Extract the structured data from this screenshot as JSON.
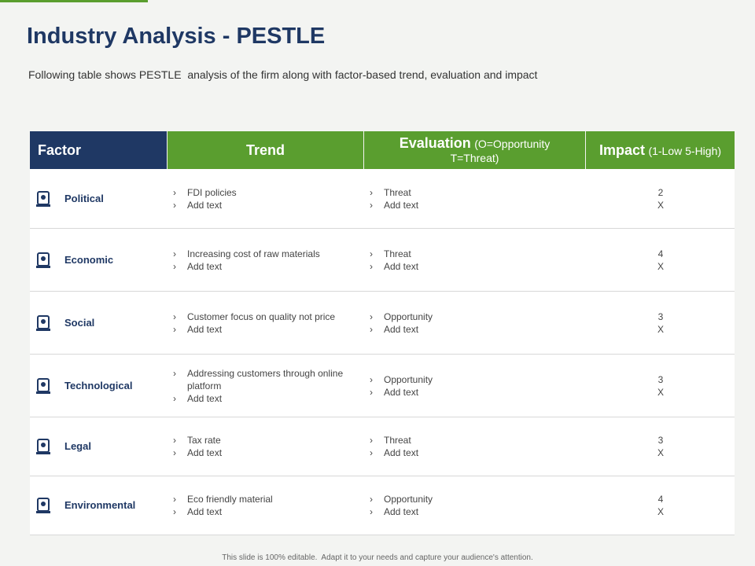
{
  "header": {
    "title": "Industry Analysis - PESTLE",
    "subtitle": "Following table shows PESTLE  analysis of the firm along with factor-based trend, evaluation and impact"
  },
  "table": {
    "columns": [
      {
        "name": "Factor"
      },
      {
        "name": "Trend"
      },
      {
        "name": "Evaluation",
        "note": "(O=Opportunity T=Threat)"
      },
      {
        "name": "Impact",
        "note": "(1-Low 5-High)"
      }
    ],
    "rows": [
      {
        "factor": "Political",
        "trend": [
          "FDI policies",
          "Add text"
        ],
        "evaluation": [
          "Threat",
          "Add text"
        ],
        "impact": [
          2,
          "X"
        ]
      },
      {
        "factor": "Economic",
        "trend": [
          "Increasing cost of raw materials",
          "Add text"
        ],
        "evaluation": [
          "Threat",
          "Add text"
        ],
        "impact": [
          4,
          "X"
        ]
      },
      {
        "factor": "Social",
        "trend": [
          "Customer focus on quality not price",
          "Add text"
        ],
        "evaluation": [
          "Opportunity",
          "Add text"
        ],
        "impact": [
          3,
          "X"
        ]
      },
      {
        "factor": "Technological",
        "trend": [
          "Addressing customers through online platform",
          "Add text"
        ],
        "evaluation": [
          "Opportunity",
          "Add text"
        ],
        "impact": [
          3,
          "X"
        ]
      },
      {
        "factor": "Legal",
        "trend": [
          "Tax rate",
          "Add text"
        ],
        "evaluation": [
          "Threat",
          "Add text"
        ],
        "impact": [
          3,
          "X"
        ]
      },
      {
        "factor": "Environmental",
        "trend": [
          "Eco friendly  material",
          "Add text"
        ],
        "evaluation": [
          "Opportunity",
          "Add text"
        ],
        "impact": [
          4,
          "X"
        ]
      }
    ]
  },
  "footer": "This slide is 100% editable.  Adapt it to your needs and capture your audience's attention."
}
